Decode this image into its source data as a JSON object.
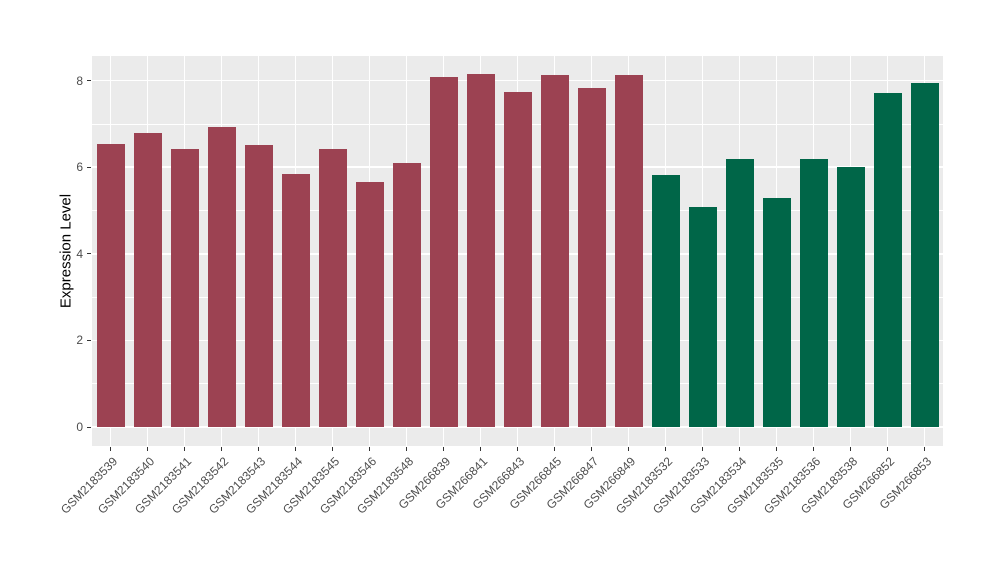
{
  "chart_data": {
    "type": "bar",
    "title": "",
    "ylabel": "Expression Level",
    "xlabel": "",
    "ylim": [
      0,
      8.6
    ],
    "yticks": [
      "0",
      "2",
      "4",
      "6",
      "8"
    ],
    "ytick_values": [
      0,
      2,
      4,
      6,
      8
    ],
    "minor_grid_values": [
      1,
      3,
      5,
      7
    ],
    "grid": true,
    "legend": "none",
    "panel_bg": "#EBEBEB",
    "grid_color": "#FFFFFF",
    "axis_text_color": "#4D4D4D",
    "tick_mark_color": "#333333",
    "bar_colors": {
      "maroon": "#9C4252",
      "green": "#006648"
    },
    "categories": [
      "GSM2183539",
      "GSM2183540",
      "GSM2183541",
      "GSM2183542",
      "GSM2183543",
      "GSM2183544",
      "GSM2183545",
      "GSM2183546",
      "GSM2183548",
      "GSM266839",
      "GSM266841",
      "GSM266843",
      "GSM266845",
      "GSM266847",
      "GSM266849",
      "GSM2183532",
      "GSM2183533",
      "GSM2183534",
      "GSM2183535",
      "GSM2183536",
      "GSM2183538",
      "GSM266852",
      "GSM266853"
    ],
    "values": [
      6.53,
      6.8,
      6.41,
      6.93,
      6.51,
      5.85,
      6.42,
      5.66,
      6.1,
      8.09,
      8.16,
      7.74,
      8.13,
      7.83,
      8.12,
      5.83,
      5.08,
      6.18,
      5.29,
      6.19,
      6.01,
      7.71,
      7.95
    ],
    "color_keys": [
      "maroon",
      "maroon",
      "maroon",
      "maroon",
      "maroon",
      "maroon",
      "maroon",
      "maroon",
      "maroon",
      "maroon",
      "maroon",
      "maroon",
      "maroon",
      "maroon",
      "maroon",
      "green",
      "green",
      "green",
      "green",
      "green",
      "green",
      "green",
      "green"
    ]
  }
}
